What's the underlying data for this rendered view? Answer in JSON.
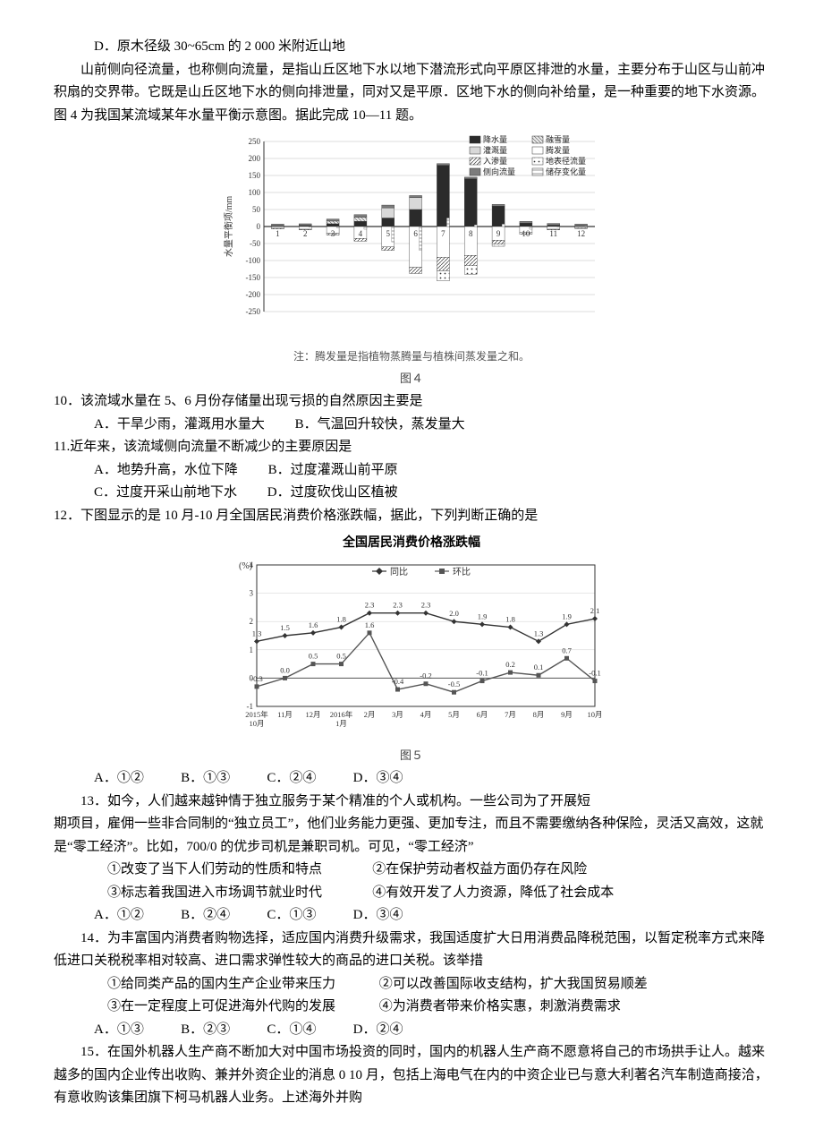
{
  "q_d": "D．原木径级 30~65cm 的 2 000 米附近山地",
  "passage2": "山前侧向径流量，也称侧向流量，是指山丘区地下水以地下潜流形式向平原区排泄的水量，主要分布于山区与山前冲积扇的交界带。它既是山丘区地下水的侧向排泄量，同对又是平原．区地下水的侧向补给量，是一种重要的地下水资源。图 4 为我国某流域某年水量平衡示意图。据此完成 10—11 题。",
  "chart4": {
    "type": "bar",
    "title_below": "图４",
    "note_below": "注：腾发量是指植物蒸腾量与植株间蒸发量之和。",
    "ylabel": "水量平衡项/mm",
    "xlim": [
      0,
      13
    ],
    "ylim": [
      -250,
      250
    ],
    "ytick_step": 50,
    "months": [
      "1",
      "2",
      "3",
      "4",
      "5",
      "6",
      "7",
      "8",
      "9",
      "10",
      "11",
      "12"
    ],
    "background": "#ffffff",
    "grid_color": "#bdbdbd",
    "axis_color": "#333333",
    "legend": [
      {
        "label": "降水量",
        "fill": "#2b2b2b"
      },
      {
        "label": "融雪量",
        "fill": "url(#hatch-melt)"
      },
      {
        "label": "灌溉量",
        "fill": "#d8d8d8"
      },
      {
        "label": "腾发量",
        "fill": "#ffffff",
        "stroke": "#333"
      },
      {
        "label": "入渗量",
        "fill": "url(#hatch-inf)"
      },
      {
        "label": "地表径流量",
        "fill": "url(#hatch-runoff)"
      },
      {
        "label": "侧向流量",
        "fill": "#7c7c7c"
      },
      {
        "label": "储存变化量",
        "fill": "url(#hatch-store)"
      }
    ],
    "series_pos": {
      "precip": [
        2,
        3,
        8,
        15,
        25,
        50,
        180,
        140,
        60,
        10,
        4,
        2
      ],
      "melt": [
        0,
        0,
        8,
        12,
        0,
        0,
        0,
        0,
        0,
        0,
        0,
        0
      ],
      "irrig": [
        0,
        0,
        0,
        0,
        30,
        35,
        0,
        0,
        0,
        0,
        0,
        0
      ],
      "lateral": [
        5,
        5,
        6,
        8,
        8,
        6,
        5,
        5,
        5,
        5,
        5,
        5
      ]
    },
    "series_neg": {
      "et": [
        5,
        8,
        20,
        35,
        60,
        120,
        90,
        85,
        40,
        18,
        8,
        4
      ],
      "inf": [
        2,
        2,
        5,
        8,
        10,
        18,
        40,
        30,
        12,
        5,
        2,
        2
      ],
      "runoff": [
        0,
        0,
        0,
        0,
        0,
        0,
        30,
        25,
        6,
        0,
        0,
        0
      ],
      "store": [
        0,
        -2,
        -3,
        -8,
        -45,
        -70,
        25,
        5,
        7,
        -8,
        -1,
        1
      ]
    }
  },
  "q10": "10．该流域水量在 5、6 月份存储量出现亏损的自然原因主要是",
  "q10_opts": {
    "A": "A．干旱少雨，灌溉用水量大",
    "B": "B．气温回升较快，蒸发量大"
  },
  "q11": "11.近年来，该流域侧向流量不断减少的主要原因是",
  "q11_opts": {
    "A": "A．地势升高，水位下降",
    "B": "B．过度灌溉山前平原",
    "C": "C．过度开采山前地下水",
    "D": "D．过度砍伐山区植被"
  },
  "q12": "12．下图显示的是 10 月-10 月全国居民消费价格涨跌幅，据此，下列判断正确的是",
  "chart5": {
    "type": "line",
    "title": "全国居民消费价格涨跌幅",
    "title_below": "图５",
    "ylabel": "(%)",
    "xlim": [
      0,
      13
    ],
    "ylim": [
      -1,
      4
    ],
    "yticks": [
      -1,
      0,
      1,
      2,
      3,
      4
    ],
    "x_labels": [
      "2015年\n10月",
      "11月",
      "12月",
      "2016年\n1月",
      "2月",
      "3月",
      "4月",
      "5月",
      "6月",
      "7月",
      "8月",
      "9月",
      "10月"
    ],
    "background": "#ffffff",
    "grid_color": "#cfcfcf",
    "axis_color": "#333333",
    "series": [
      {
        "name": "同比",
        "marker": "diamond",
        "color": "#333333",
        "values": [
          1.3,
          1.5,
          1.6,
          1.8,
          2.3,
          2.3,
          2.3,
          2.0,
          1.9,
          1.8,
          1.3,
          1.9,
          2.1
        ]
      },
      {
        "name": "环比",
        "marker": "square",
        "color": "#555555",
        "values": [
          -0.3,
          0.0,
          0.5,
          0.5,
          1.6,
          -0.4,
          -0.2,
          -0.5,
          -0.1,
          0.2,
          0.1,
          0.7,
          -0.1
        ]
      }
    ]
  },
  "q12_opts": {
    "A": "A．①②",
    "B": "B．①③",
    "C": "C．②④",
    "D": "D．③④"
  },
  "q13_head": "13．如今，人们越来越钟情于独立服务于某个精准的个人或机构。一些公司为了开展短",
  "q13_body": "期项目，雇佣一些非合同制的“独立员工”，他们业务能力更强、更加专注，而且不需要缴纳各种保险，灵活又高效，这就是“零工经济”。比如，700/0 的优步司机是兼职司机。可见，“零工经济”",
  "q13_items": {
    "1": "①改变了当下人们劳动的性质和特点",
    "2": "②在保护劳动者权益方面仍存在风险",
    "3": "③标志着我国进入市场调节就业时代",
    "4": "④有效开发了人力资源，降低了社会成本"
  },
  "q13_opts": {
    "A": "A．①②",
    "B": "B．②④",
    "C": "C．①③",
    "D": "D．③④"
  },
  "q14": "14．为丰富国内消费者购物选择，适应国内消费升级需求，我国适度扩大日用消费品降税范围，以暂定税率方式来降低进口关税税率相对较高、进口需求弹性较大的商品的进口关税。该举措",
  "q14_items": {
    "1": "①给同类产品的国内生产企业带来压力",
    "2": "②可以改善国际收支结构，扩大我国贸易顺差",
    "3": "③在一定程度上可促进海外代购的发展",
    "4": "④为消费者带来价格实惠，刺激消费需求"
  },
  "q14_opts": {
    "A": "A．①③",
    "B": "B．②③",
    "C": "C．①④",
    "D": "D．②④"
  },
  "q15": "15．在国外机器人生产商不断加大对中国市场投资的同时，国内的机器人生产商不愿意将自己的市场拱手让人。越来越多的国内企业传出收购、兼并外资企业的消息 0 10 月，包括上海电气在内的中资企业已与意大利著名汽车制造商接洽，有意收购该集团旗下柯马机器人业务。上述海外并购"
}
